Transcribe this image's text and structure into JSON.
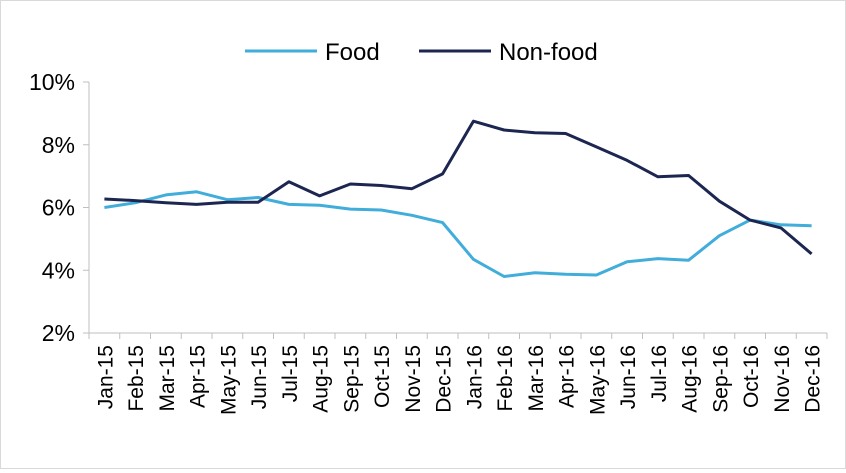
{
  "chart_data": {
    "type": "line",
    "title": "",
    "xlabel": "",
    "ylabel": "",
    "categories": [
      "Jan-15",
      "Feb-15",
      "Mar-15",
      "Apr-15",
      "May-15",
      "Jun-15",
      "Jul-15",
      "Aug-15",
      "Sep-15",
      "Oct-15",
      "Nov-15",
      "Dec-15",
      "Jan-16",
      "Feb-16",
      "Mar-16",
      "Apr-16",
      "May-16",
      "Jun-16",
      "Jul-16",
      "Aug-16",
      "Sep-16",
      "Oct-16",
      "Nov-16",
      "Dec-16"
    ],
    "y_tick_labels": [
      "2%",
      "4%",
      "6%",
      "8%",
      "10%"
    ],
    "ylim": [
      2,
      10
    ],
    "y_unit": "%",
    "grid": false,
    "legend_position": "top",
    "series": [
      {
        "name": "Food",
        "color": "#41ADDA",
        "values": [
          6.0,
          6.15,
          6.4,
          6.5,
          6.25,
          6.32,
          6.1,
          6.07,
          5.95,
          5.92,
          5.75,
          5.52,
          4.35,
          3.8,
          3.92,
          3.87,
          3.85,
          4.27,
          4.37,
          4.32,
          5.1,
          5.6,
          5.45,
          5.42
        ]
      },
      {
        "name": "Non-food",
        "color": "#1C2651",
        "values": [
          6.27,
          6.22,
          6.15,
          6.1,
          6.17,
          6.17,
          6.82,
          6.37,
          6.75,
          6.7,
          6.6,
          7.07,
          8.75,
          8.47,
          8.38,
          8.36,
          7.93,
          7.5,
          6.98,
          7.02,
          6.2,
          5.6,
          5.35,
          4.52
        ]
      }
    ]
  }
}
